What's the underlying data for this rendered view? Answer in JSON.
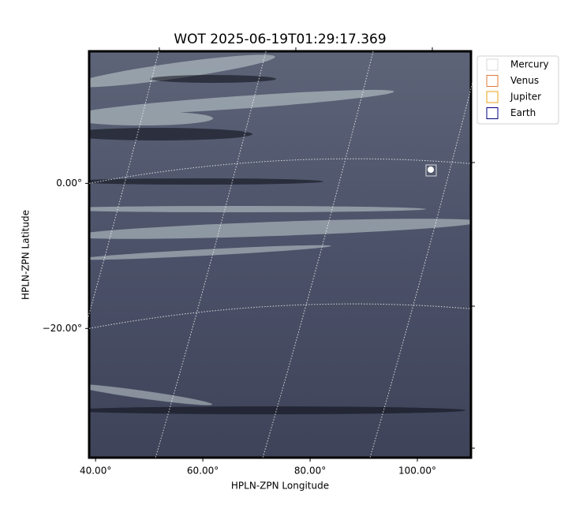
{
  "chart_data": {
    "type": "image",
    "title": "WOT 2025-06-19T01:29:17.369",
    "x_label": "HPLN-ZPN Longitude",
    "y_label": "HPLN-ZPN Latitude",
    "xlim": [
      38.8,
      110
    ],
    "ylim": [
      -37.8,
      18.2
    ],
    "xticks": [
      {
        "value": 40,
        "label": "40.00°"
      },
      {
        "value": 60,
        "label": "60.00°"
      },
      {
        "value": 80,
        "label": "80.00°"
      },
      {
        "value": 100,
        "label": "100.00°"
      }
    ],
    "yticks": [
      {
        "value": 0,
        "label": "0.00°"
      },
      {
        "value": -20,
        "label": "−20.00°"
      }
    ],
    "grid": true,
    "legend_position": "upper right",
    "series": [
      {
        "name": "Mercury",
        "color": "#d9d9d9"
      },
      {
        "name": "Venus",
        "color": "#e07b39"
      },
      {
        "name": "Jupiter",
        "color": "#e8a317"
      },
      {
        "name": "Earth",
        "color": "#000080"
      }
    ]
  }
}
